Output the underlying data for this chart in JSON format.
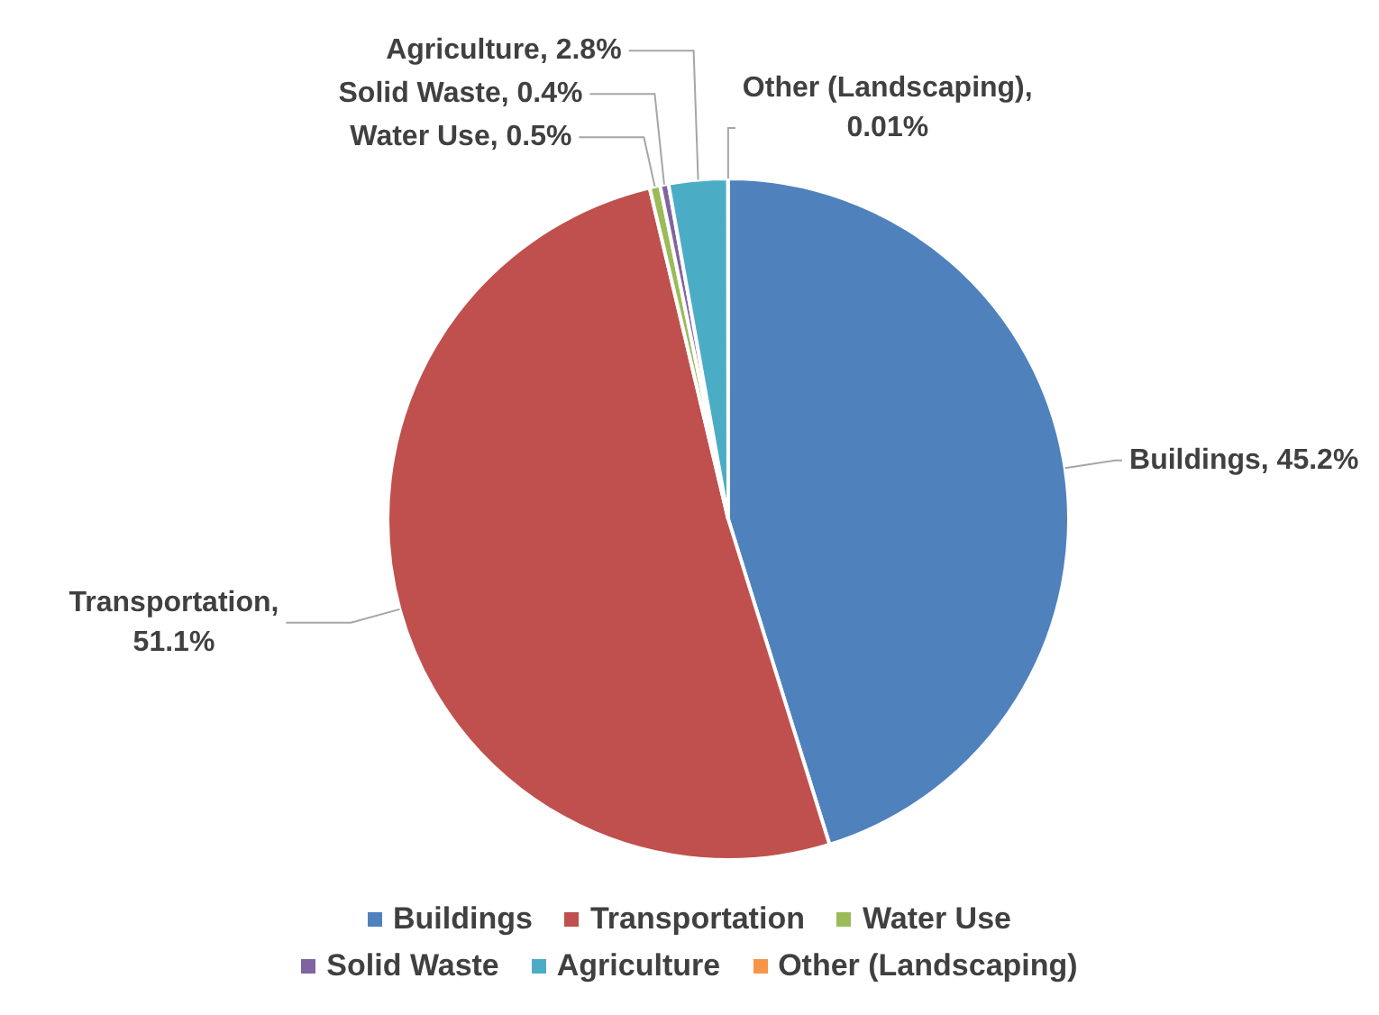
{
  "chart_data": {
    "type": "pie",
    "categories": [
      "Buildings",
      "Transportation",
      "Water Use",
      "Solid Waste",
      "Agriculture",
      "Other (Landscaping)"
    ],
    "values": [
      45.2,
      51.1,
      0.5,
      0.4,
      2.8,
      0.01
    ],
    "colors": [
      "#4f81bd",
      "#c0504d",
      "#9bbb59",
      "#8064a2",
      "#4bacc6",
      "#f79646"
    ],
    "value_labels": [
      "Buildings, 45.2%",
      "Transportation, 51.1%",
      "Water Use, 0.5%",
      "Solid Waste, 0.4%",
      "Agriculture, 2.8%",
      "Other (Landscaping), 0.01%"
    ],
    "legend": "bottom"
  }
}
